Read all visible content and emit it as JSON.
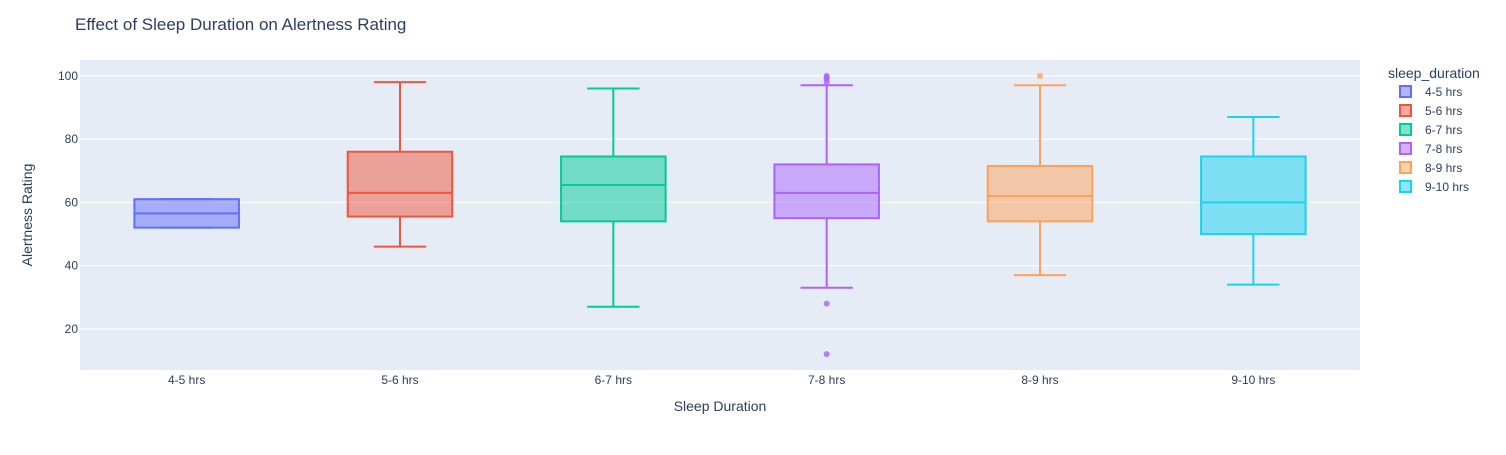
{
  "chart_data": {
    "type": "box",
    "title": "Effect of Sleep Duration on Alertness Rating",
    "xlabel": "Sleep Duration",
    "ylabel": "Alertness Rating",
    "ylim": [
      7,
      105
    ],
    "yticks": [
      20,
      40,
      60,
      80,
      100
    ],
    "grid": true,
    "legend": {
      "title": "sleep_duration",
      "placement": "right"
    },
    "categories": [
      "4-5 hrs",
      "5-6 hrs",
      "6-7 hrs",
      "7-8 hrs",
      "8-9 hrs",
      "9-10 hrs"
    ],
    "series": [
      {
        "name": "4-5 hrs",
        "color": "#636efa",
        "lowerfence": 52,
        "q1": 52,
        "median": 56.5,
        "q3": 61,
        "upperfence": 61,
        "outliers": []
      },
      {
        "name": "5-6 hrs",
        "color": "#ef553b",
        "lowerfence": 46,
        "q1": 55.5,
        "median": 63,
        "q3": 76,
        "upperfence": 98,
        "outliers": []
      },
      {
        "name": "6-7 hrs",
        "color": "#00cc96",
        "lowerfence": 27,
        "q1": 54,
        "median": 65.5,
        "q3": 74.5,
        "upperfence": 96,
        "outliers": []
      },
      {
        "name": "7-8 hrs",
        "color": "#ab63fa",
        "lowerfence": 33,
        "q1": 55,
        "median": 63,
        "q3": 72,
        "upperfence": 97,
        "outliers": [
          12,
          28,
          98,
          99,
          99.5,
          100
        ]
      },
      {
        "name": "8-9 hrs",
        "color": "#ffa15a",
        "lowerfence": 37,
        "q1": 54,
        "median": 62,
        "q3": 71.5,
        "upperfence": 97,
        "outliers": [
          100
        ]
      },
      {
        "name": "9-10 hrs",
        "color": "#19d3f3",
        "lowerfence": 34,
        "q1": 50,
        "median": 60,
        "q3": 74.5,
        "upperfence": 87,
        "outliers": []
      }
    ]
  }
}
